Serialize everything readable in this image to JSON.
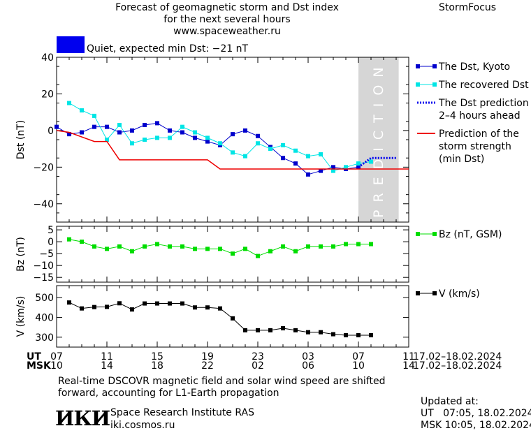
{
  "header": {
    "title_line1": "Forecast of geomagnetic storm and Dst index",
    "title_line2": "for the next several hours",
    "url": "www.spaceweather.ru",
    "brand": "StormFocus"
  },
  "status": {
    "color": "#0000ee",
    "text": "Quiet, expected min Dst: −21 nT"
  },
  "footer": {
    "note_line1": "Real-time DSCOVR magnetic field and solar wind speed are shifted",
    "note_line2": "forward, accounting for L1-Earth propagation",
    "logo_text": "ИКИ",
    "institute": "Space Research Institute RAS",
    "site": "iki.cosmos.ru",
    "updated_label": "Updated at:",
    "updated_ut": "UT   07:05, 18.02.2024",
    "updated_msk": "MSK 10:05, 18.02.2024"
  },
  "chart_data": {
    "type": "line",
    "prediction_label": "PREDICTION",
    "prediction_window": [
      7,
      9
    ],
    "x_axis": {
      "ut_label": "UT",
      "msk_label": "MSK",
      "ut_ticks": [
        {
          "x": 7,
          "label": "07"
        },
        {
          "x": 11,
          "label": "11"
        },
        {
          "x": 15,
          "label": "15"
        },
        {
          "x": 19,
          "label": "19"
        },
        {
          "x": 23,
          "label": "23"
        },
        {
          "x": 27,
          "label": "03"
        },
        {
          "x": 31,
          "label": "07"
        },
        {
          "x": 35,
          "label": "11"
        }
      ],
      "msk_ticks": [
        "10",
        "14",
        "18",
        "22",
        "02",
        "06",
        "10",
        "14"
      ],
      "date_range": "17.02–18.02.2024",
      "xlim": [
        7,
        35
      ]
    },
    "panels": [
      {
        "id": "dst",
        "ylabel": "Dst (nT)",
        "ylim": [
          -50,
          40
        ],
        "yticks": [
          40,
          20,
          0,
          -20,
          -40
        ],
        "series": [
          {
            "name": "The Dst, Kyoto",
            "color": "#0000cc",
            "marker": "square",
            "x": [
              7,
              8,
              9,
              10,
              11,
              12,
              13,
              14,
              15,
              16,
              17,
              18,
              19,
              20,
              21,
              22,
              23,
              24,
              25,
              26,
              27,
              28,
              29,
              30,
              31
            ],
            "y": [
              2,
              -2,
              -1,
              2,
              2,
              -1,
              0,
              3,
              4,
              0,
              -1,
              -4,
              -6,
              -8,
              -2,
              0,
              -3,
              -9,
              -15,
              -18,
              -24,
              -22,
              -20,
              -21,
              -20
            ]
          },
          {
            "name": "The recovered Dst",
            "color": "#00e5e5",
            "marker": "square",
            "x": [
              8,
              9,
              10,
              11,
              12,
              13,
              14,
              15,
              16,
              17,
              18,
              19,
              20,
              21,
              22,
              23,
              24,
              25,
              26,
              27,
              28,
              29,
              30,
              31,
              32
            ],
            "y": [
              15,
              11,
              8,
              -5,
              3,
              -7,
              -5,
              -4,
              -4,
              2,
              -1,
              -4,
              -7,
              -12,
              -14,
              -7,
              -10,
              -8,
              -11,
              -14,
              -13,
              -22,
              -20,
              -18,
              -17
            ]
          },
          {
            "name": "The Dst prediction 2–4 hours ahead",
            "color": "#0000ee",
            "style": "dotted",
            "x": [
              31,
              32,
              33,
              34
            ],
            "y": [
              -20,
              -15,
              -15,
              -15
            ]
          },
          {
            "name": "Prediction of the storm strength (min Dst)",
            "color": "#ee0000",
            "style": "step",
            "x": [
              7,
              8,
              10,
              11,
              12,
              19,
              20,
              23,
              35
            ],
            "y": [
              0,
              -1,
              -6,
              -6,
              -16,
              -16,
              -21,
              -21,
              -21
            ]
          }
        ]
      },
      {
        "id": "bz",
        "ylabel": "Bz (nT)",
        "ylim": [
          -17,
          6.5
        ],
        "yticks": [
          5,
          0,
          -5,
          -10,
          -15
        ],
        "series": [
          {
            "name": "Bz (nT, GSM)",
            "color": "#00dd00",
            "marker": "square",
            "x": [
              8,
              9,
              10,
              11,
              12,
              13,
              14,
              15,
              16,
              17,
              18,
              19,
              20,
              21,
              22,
              23,
              24,
              25,
              26,
              27,
              28,
              29,
              30,
              31,
              32
            ],
            "y": [
              1,
              0,
              -2,
              -3,
              -2,
              -4,
              -2,
              -1,
              -2,
              -2,
              -3,
              -3,
              -3,
              -5,
              -3,
              -6,
              -4,
              -2,
              -4,
              -2,
              -2,
              -2,
              -1,
              -1,
              -1
            ]
          }
        ]
      },
      {
        "id": "v",
        "ylabel": "V (km/s)",
        "ylim": [
          250,
          560
        ],
        "yticks": [
          500,
          400,
          300
        ],
        "series": [
          {
            "name": "V (km/s)",
            "color": "#000000",
            "marker": "square",
            "x": [
              8,
              9,
              10,
              11,
              12,
              13,
              14,
              15,
              16,
              17,
              18,
              19,
              20,
              21,
              22,
              23,
              24,
              25,
              26,
              27,
              28,
              29,
              30,
              31,
              32
            ],
            "y": [
              475,
              445,
              452,
              453,
              471,
              440,
              470,
              470,
              470,
              470,
              450,
              450,
              445,
              395,
              335,
              335,
              335,
              345,
              335,
              325,
              325,
              315,
              310,
              310,
              310
            ]
          }
        ]
      }
    ]
  }
}
